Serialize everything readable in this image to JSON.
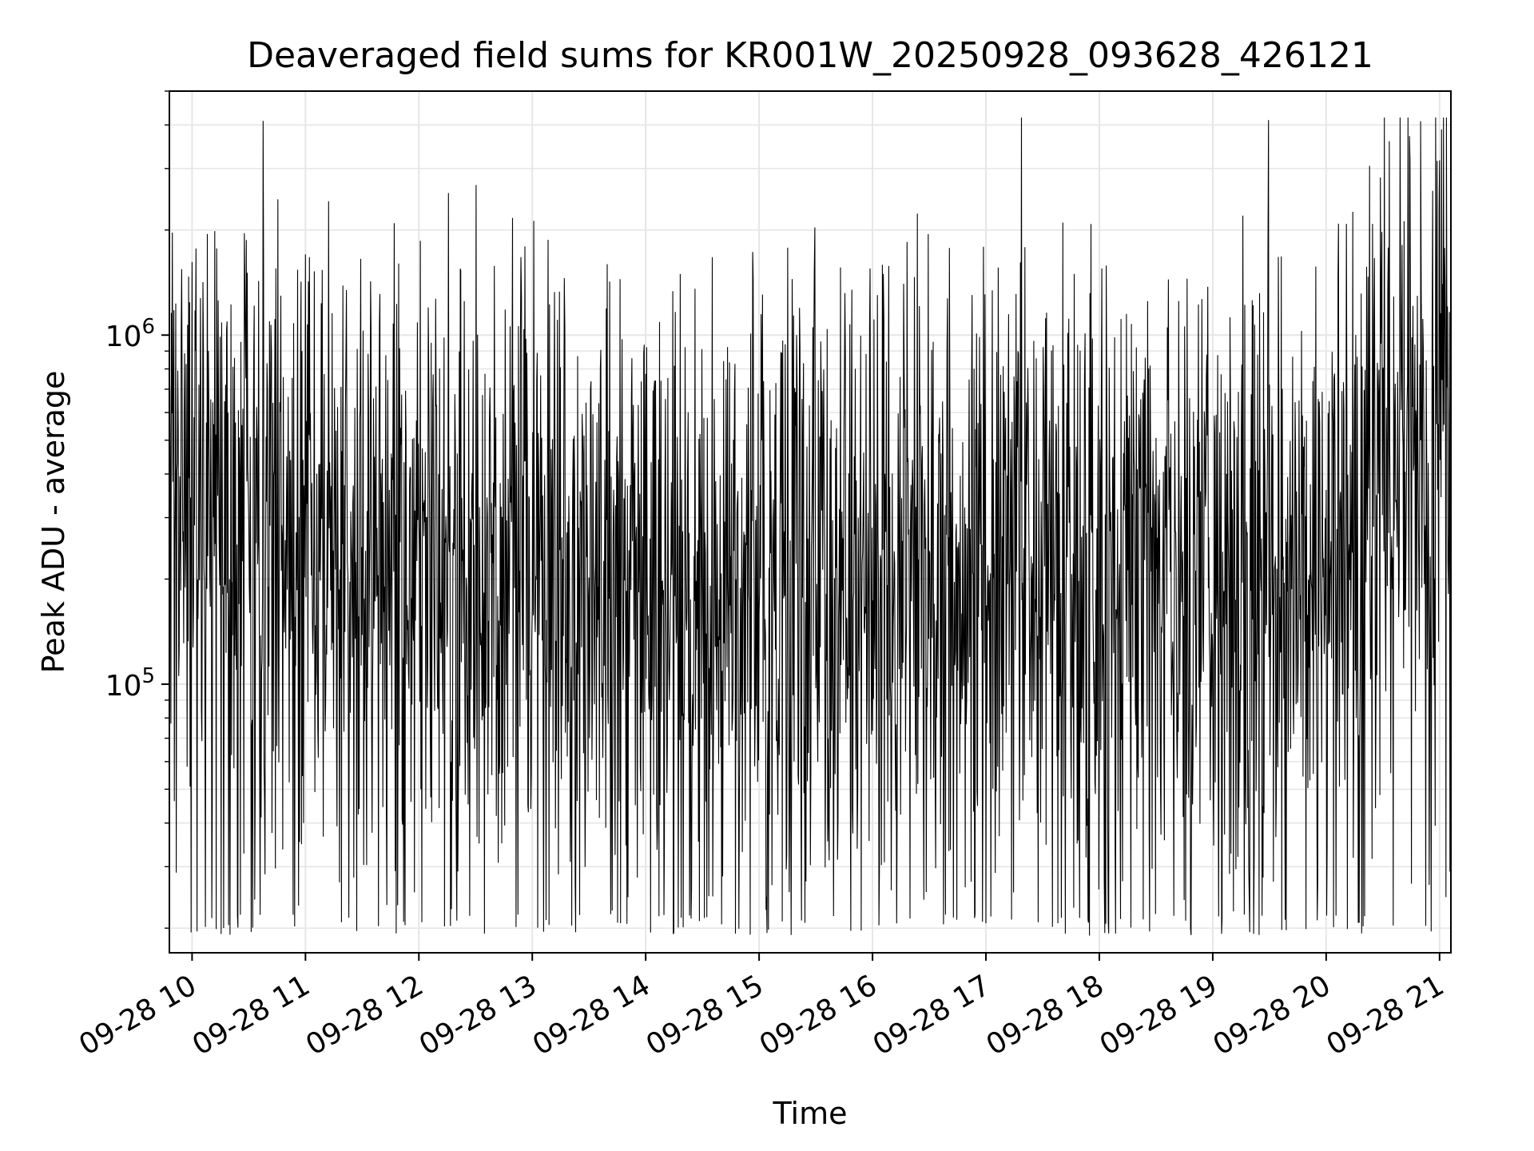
{
  "chart_data": {
    "type": "line",
    "title": "Deaveraged field sums for KR001W_20250928_093628_426121",
    "xlabel": "Time",
    "ylabel": "Peak ADU - average",
    "yscale": "log",
    "ylim": [
      17000,
      5000000
    ],
    "xlim": [
      "2025-09-28T09:48",
      "2025-09-28T21:06"
    ],
    "x_tick_labels": [
      "09-28 10",
      "09-28 11",
      "09-28 12",
      "09-28 13",
      "09-28 14",
      "09-28 15",
      "09-28 16",
      "09-28 17",
      "09-28 18",
      "09-28 19",
      "09-28 20",
      "09-28 21"
    ],
    "x_ticks": [
      "2025-09-28T10:00",
      "2025-09-28T11:00",
      "2025-09-28T12:00",
      "2025-09-28T13:00",
      "2025-09-28T14:00",
      "2025-09-28T15:00",
      "2025-09-28T16:00",
      "2025-09-28T17:00",
      "2025-09-28T18:00",
      "2025-09-28T19:00",
      "2025-09-28T20:00",
      "2025-09-28T21:00"
    ],
    "y_tick_labels": [
      {
        "base": "10",
        "exp": "5",
        "value": 100000
      },
      {
        "base": "10",
        "exp": "6",
        "value": 1000000
      }
    ],
    "grid": true,
    "line_color": "#000000",
    "series": [
      {
        "x": [
          "2025-09-28T09:48",
          "2025-09-28T10:00",
          "2025-09-28T10:15",
          "2025-09-28T10:30",
          "2025-09-28T10:45",
          "2025-09-28T11:00",
          "2025-09-28T11:30",
          "2025-09-28T12:00",
          "2025-09-28T12:30",
          "2025-09-28T13:00",
          "2025-09-28T13:30",
          "2025-09-28T14:00",
          "2025-09-28T14:30",
          "2025-09-28T15:00",
          "2025-09-28T15:30",
          "2025-09-28T16:00",
          "2025-09-28T16:30",
          "2025-09-28T17:00",
          "2025-09-28T17:30",
          "2025-09-28T18:00",
          "2025-09-28T18:30",
          "2025-09-28T19:00",
          "2025-09-28T19:30",
          "2025-09-28T20:00",
          "2025-09-28T20:15",
          "2025-09-28T20:30",
          "2025-09-28T20:45",
          "2025-09-28T21:00",
          "2025-09-28T21:06"
        ],
        "values": [
          500000,
          350000,
          300000,
          280000,
          290000,
          260000,
          240000,
          230000,
          220000,
          210000,
          200000,
          190000,
          185000,
          190000,
          195000,
          200000,
          210000,
          215000,
          220000,
          215000,
          210000,
          205000,
          200000,
          210000,
          300000,
          450000,
          600000,
          620000,
          600000
        ]
      }
    ]
  }
}
